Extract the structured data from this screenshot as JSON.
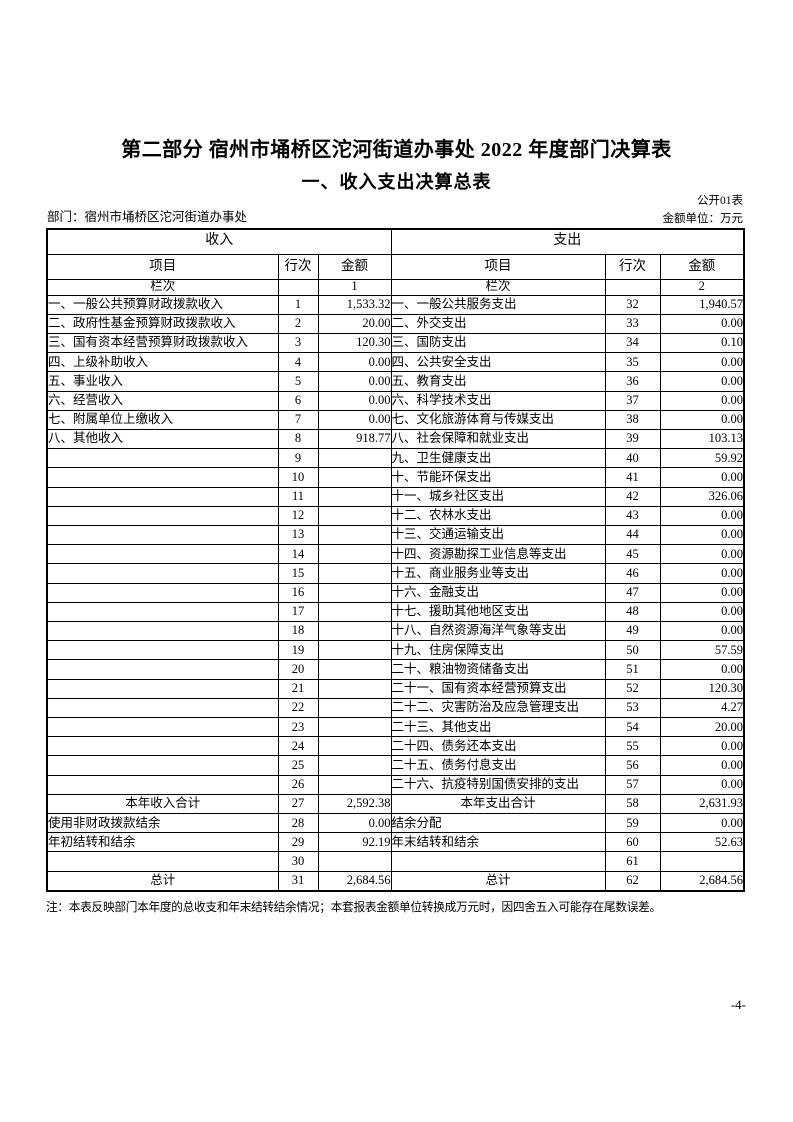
{
  "page": {
    "title": "第二部分 宿州市埇桥区沱河街道办事处 2022 年度部门决算表",
    "subtitle": "一、收入支出决算总表",
    "table_code": "公开01表",
    "department_label": "部门：宿州市埇桥区沱河街道办事处",
    "unit_label": "金额单位：万元",
    "note": "注：本表反映部门本年度的总收支和年末结转结余情况；本套报表金额单位转换成万元时，因四舍五入可能存在尾数误差。",
    "page_number": "-4-"
  },
  "table": {
    "income_header": "收入",
    "expense_header": "支出",
    "col_item": "项目",
    "col_row_no": "行次",
    "col_amount": "金额",
    "lanci_label": "栏次",
    "income_col_no": "1",
    "expense_col_no": "2",
    "rows": [
      {
        "inc_item": "一、一般公共预算财政拨款收入",
        "inc_no": "1",
        "inc_amt": "1,533.32",
        "exp_item": "一、一般公共服务支出",
        "exp_no": "32",
        "exp_amt": "1,940.57"
      },
      {
        "inc_item": "二、政府性基金预算财政拨款收入",
        "inc_no": "2",
        "inc_amt": "20.00",
        "exp_item": "二、外交支出",
        "exp_no": "33",
        "exp_amt": "0.00"
      },
      {
        "inc_item": "三、国有资本经营预算财政拨款收入",
        "inc_no": "3",
        "inc_amt": "120.30",
        "exp_item": "三、国防支出",
        "exp_no": "34",
        "exp_amt": "0.10"
      },
      {
        "inc_item": "四、上级补助收入",
        "inc_no": "4",
        "inc_amt": "0.00",
        "exp_item": "四、公共安全支出",
        "exp_no": "35",
        "exp_amt": "0.00"
      },
      {
        "inc_item": "五、事业收入",
        "inc_no": "5",
        "inc_amt": "0.00",
        "exp_item": "五、教育支出",
        "exp_no": "36",
        "exp_amt": "0.00"
      },
      {
        "inc_item": "六、经营收入",
        "inc_no": "6",
        "inc_amt": "0.00",
        "exp_item": "六、科学技术支出",
        "exp_no": "37",
        "exp_amt": "0.00"
      },
      {
        "inc_item": "七、附属单位上缴收入",
        "inc_no": "7",
        "inc_amt": "0.00",
        "exp_item": "七、文化旅游体育与传媒支出",
        "exp_no": "38",
        "exp_amt": "0.00"
      },
      {
        "inc_item": "八、其他收入",
        "inc_no": "8",
        "inc_amt": "918.77",
        "exp_item": "八、社会保障和就业支出",
        "exp_no": "39",
        "exp_amt": "103.13"
      },
      {
        "inc_item": "",
        "inc_no": "9",
        "inc_amt": "",
        "exp_item": "九、卫生健康支出",
        "exp_no": "40",
        "exp_amt": "59.92"
      },
      {
        "inc_item": "",
        "inc_no": "10",
        "inc_amt": "",
        "exp_item": "十、节能环保支出",
        "exp_no": "41",
        "exp_amt": "0.00"
      },
      {
        "inc_item": "",
        "inc_no": "11",
        "inc_amt": "",
        "exp_item": "十一、城乡社区支出",
        "exp_no": "42",
        "exp_amt": "326.06"
      },
      {
        "inc_item": "",
        "inc_no": "12",
        "inc_amt": "",
        "exp_item": "十二、农林水支出",
        "exp_no": "43",
        "exp_amt": "0.00"
      },
      {
        "inc_item": "",
        "inc_no": "13",
        "inc_amt": "",
        "exp_item": "十三、交通运输支出",
        "exp_no": "44",
        "exp_amt": "0.00"
      },
      {
        "inc_item": "",
        "inc_no": "14",
        "inc_amt": "",
        "exp_item": "十四、资源勘探工业信息等支出",
        "exp_no": "45",
        "exp_amt": "0.00"
      },
      {
        "inc_item": "",
        "inc_no": "15",
        "inc_amt": "",
        "exp_item": "十五、商业服务业等支出",
        "exp_no": "46",
        "exp_amt": "0.00"
      },
      {
        "inc_item": "",
        "inc_no": "16",
        "inc_amt": "",
        "exp_item": "十六、金融支出",
        "exp_no": "47",
        "exp_amt": "0.00"
      },
      {
        "inc_item": "",
        "inc_no": "17",
        "inc_amt": "",
        "exp_item": "十七、援助其他地区支出",
        "exp_no": "48",
        "exp_amt": "0.00"
      },
      {
        "inc_item": "",
        "inc_no": "18",
        "inc_amt": "",
        "exp_item": "十八、自然资源海洋气象等支出",
        "exp_no": "49",
        "exp_amt": "0.00"
      },
      {
        "inc_item": "",
        "inc_no": "19",
        "inc_amt": "",
        "exp_item": "十九、住房保障支出",
        "exp_no": "50",
        "exp_amt": "57.59"
      },
      {
        "inc_item": "",
        "inc_no": "20",
        "inc_amt": "",
        "exp_item": "二十、粮油物资储备支出",
        "exp_no": "51",
        "exp_amt": "0.00"
      },
      {
        "inc_item": "",
        "inc_no": "21",
        "inc_amt": "",
        "exp_item": "二十一、国有资本经营预算支出",
        "exp_no": "52",
        "exp_amt": "120.30"
      },
      {
        "inc_item": "",
        "inc_no": "22",
        "inc_amt": "",
        "exp_item": "二十二、灾害防治及应急管理支出",
        "exp_no": "53",
        "exp_amt": "4.27"
      },
      {
        "inc_item": "",
        "inc_no": "23",
        "inc_amt": "",
        "exp_item": "二十三、其他支出",
        "exp_no": "54",
        "exp_amt": "20.00"
      },
      {
        "inc_item": "",
        "inc_no": "24",
        "inc_amt": "",
        "exp_item": "二十四、债务还本支出",
        "exp_no": "55",
        "exp_amt": "0.00"
      },
      {
        "inc_item": "",
        "inc_no": "25",
        "inc_amt": "",
        "exp_item": "二十五、债务付息支出",
        "exp_no": "56",
        "exp_amt": "0.00"
      },
      {
        "inc_item": "",
        "inc_no": "26",
        "inc_amt": "",
        "exp_item": "二十六、抗疫特别国债安排的支出",
        "exp_no": "57",
        "exp_amt": "0.00"
      },
      {
        "inc_item": "本年收入合计",
        "inc_no": "27",
        "inc_amt": "2,592.38",
        "exp_item": "本年支出合计",
        "exp_no": "58",
        "exp_amt": "2,631.93",
        "emphasis": true
      },
      {
        "inc_item": "使用非财政拨款结余",
        "inc_no": "28",
        "inc_amt": "0.00",
        "exp_item": "结余分配",
        "exp_no": "59",
        "exp_amt": "0.00"
      },
      {
        "inc_item": "年初结转和结余",
        "inc_no": "29",
        "inc_amt": "92.19",
        "exp_item": "年末结转和结余",
        "exp_no": "60",
        "exp_amt": "52.63"
      },
      {
        "inc_item": "",
        "inc_no": "30",
        "inc_amt": "",
        "exp_item": "",
        "exp_no": "61",
        "exp_amt": ""
      },
      {
        "inc_item": "总计",
        "inc_no": "31",
        "inc_amt": "2,684.56",
        "exp_item": "总计",
        "exp_no": "62",
        "exp_amt": "2,684.56",
        "emphasis": true
      }
    ]
  }
}
